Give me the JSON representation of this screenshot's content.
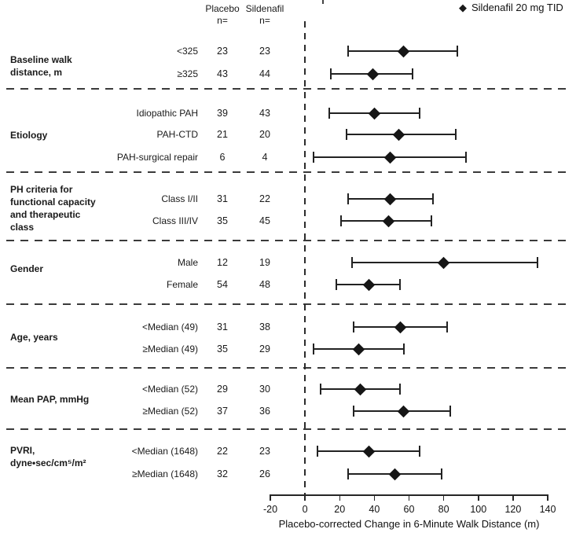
{
  "chart_data": {
    "type": "forest",
    "title": "",
    "xlabel": "Placebo-corrected Change in 6-Minute Walk Distance (m)",
    "ylabel": "",
    "xlim": [
      -20,
      140
    ],
    "xticks": [
      -20,
      0,
      20,
      40,
      60,
      80,
      100,
      120,
      140
    ],
    "reference_line_x": 0,
    "grid": false,
    "unit": "m",
    "legend": {
      "marker": "diamond",
      "marker_glyph": "◆",
      "label": "Sildenafil 20 mg TID",
      "position": "top-right"
    },
    "columns": {
      "placebo_header": [
        "Placebo",
        "n="
      ],
      "sildenafil_header": [
        "Sildenafil",
        "n="
      ]
    },
    "groups": [
      {
        "label": "Baseline walk distance, m",
        "label_lines": [
          "Baseline walk",
          "distance, m"
        ],
        "rows": [
          {
            "label": "<325",
            "placebo_n": 23,
            "sildenafil_n": 23,
            "estimate": 57,
            "ci_low": 25,
            "ci_high": 88
          },
          {
            "label": "≥325",
            "placebo_n": 43,
            "sildenafil_n": 44,
            "estimate": 39,
            "ci_low": 15,
            "ci_high": 62
          }
        ]
      },
      {
        "label": "Etiology",
        "label_lines": [
          "Etiology"
        ],
        "rows": [
          {
            "label": "Idiopathic PAH",
            "placebo_n": 39,
            "sildenafil_n": 43,
            "estimate": 40,
            "ci_low": 14,
            "ci_high": 66
          },
          {
            "label": "PAH-CTD",
            "placebo_n": 21,
            "sildenafil_n": 20,
            "estimate": 54,
            "ci_low": 24,
            "ci_high": 87
          },
          {
            "label": "PAH-surgical repair",
            "placebo_n": 6,
            "sildenafil_n": 4,
            "estimate": 49,
            "ci_low": 5,
            "ci_high": 93
          }
        ]
      },
      {
        "label": "PH criteria for functional capacity and therapeutic class",
        "label_lines": [
          "PH criteria for",
          "functional capacity",
          "and therapeutic",
          "class"
        ],
        "rows": [
          {
            "label": "Class I/II",
            "placebo_n": 31,
            "sildenafil_n": 22,
            "estimate": 49,
            "ci_low": 25,
            "ci_high": 74
          },
          {
            "label": "Class III/IV",
            "placebo_n": 35,
            "sildenafil_n": 45,
            "estimate": 48,
            "ci_low": 21,
            "ci_high": 73
          }
        ]
      },
      {
        "label": "Gender",
        "label_lines": [
          "Gender"
        ],
        "rows": [
          {
            "label": "Male",
            "placebo_n": 12,
            "sildenafil_n": 19,
            "estimate": 80,
            "ci_low": 27,
            "ci_high": 134
          },
          {
            "label": "Female",
            "placebo_n": 54,
            "sildenafil_n": 48,
            "estimate": 37,
            "ci_low": 18,
            "ci_high": 55
          }
        ]
      },
      {
        "label": "Age, years",
        "label_lines": [
          "Age, years"
        ],
        "rows": [
          {
            "label": "<Median (49)",
            "placebo_n": 31,
            "sildenafil_n": 38,
            "estimate": 55,
            "ci_low": 28,
            "ci_high": 82
          },
          {
            "label": "≥Median (49)",
            "placebo_n": 35,
            "sildenafil_n": 29,
            "estimate": 31,
            "ci_low": 5,
            "ci_high": 57
          }
        ]
      },
      {
        "label": "Mean PAP, mmHg",
        "label_lines": [
          "Mean PAP, mmHg"
        ],
        "rows": [
          {
            "label": "<Median (52)",
            "placebo_n": 29,
            "sildenafil_n": 30,
            "estimate": 32,
            "ci_low": 9,
            "ci_high": 55
          },
          {
            "label": "≥Median (52)",
            "placebo_n": 37,
            "sildenafil_n": 36,
            "estimate": 57,
            "ci_low": 28,
            "ci_high": 84
          }
        ]
      },
      {
        "label": "PVRI, dyne•sec/cm⁵/m²",
        "label_lines": [
          "PVRI,",
          "dyne•sec/cm⁵/m²"
        ],
        "rows": [
          {
            "label": "<Median (1648)",
            "placebo_n": 22,
            "sildenafil_n": 23,
            "estimate": 37,
            "ci_low": 7,
            "ci_high": 66
          },
          {
            "label": "≥Median (1648)",
            "placebo_n": 32,
            "sildenafil_n": 26,
            "estimate": 52,
            "ci_low": 25,
            "ci_high": 79
          }
        ]
      }
    ],
    "colors": {
      "marker": "#161616",
      "line": "#222222",
      "dashed": "#333333",
      "text": "#111111"
    }
  }
}
